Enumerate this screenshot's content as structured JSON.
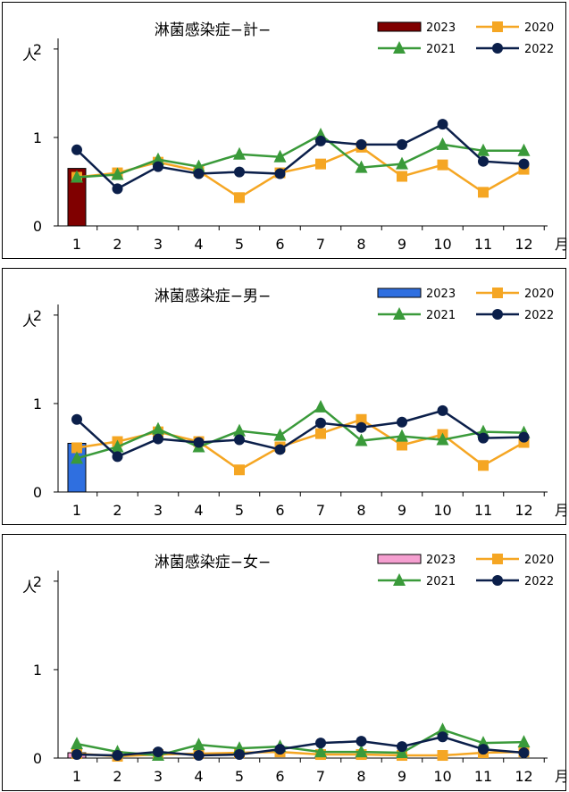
{
  "chart_data": [
    {
      "type": "bar+line",
      "title": "淋菌感染症−計−",
      "ylabel": "人",
      "xlabel": "月",
      "ylim": [
        0,
        2
      ],
      "yticks": [
        "0",
        "1",
        "2"
      ],
      "categories": [
        "1",
        "2",
        "3",
        "4",
        "5",
        "6",
        "7",
        "8",
        "9",
        "10",
        "11",
        "12"
      ],
      "bar": {
        "name": "2023",
        "color": "#800000",
        "values": [
          0.65
        ]
      },
      "series": [
        {
          "name": "2020",
          "color": "#f5a623",
          "marker": "square",
          "values": [
            0.55,
            0.6,
            0.72,
            0.62,
            0.32,
            0.6,
            0.7,
            0.89,
            0.56,
            0.69,
            0.38,
            0.64
          ]
        },
        {
          "name": "2021",
          "color": "#3a9a3a",
          "marker": "triangle",
          "values": [
            0.55,
            0.58,
            0.75,
            0.67,
            0.81,
            0.78,
            1.03,
            0.66,
            0.7,
            0.92,
            0.85,
            0.85
          ]
        },
        {
          "name": "2022",
          "color": "#0b1f4a",
          "marker": "circle",
          "values": [
            0.86,
            0.42,
            0.67,
            0.59,
            0.61,
            0.59,
            0.96,
            0.92,
            0.92,
            1.15,
            0.73,
            0.7
          ]
        }
      ],
      "legend_position": "top-right"
    },
    {
      "type": "bar+line",
      "title": "淋菌感染症−男−",
      "ylabel": "人",
      "xlabel": "月",
      "ylim": [
        0,
        2
      ],
      "yticks": [
        "0",
        "1",
        "2"
      ],
      "categories": [
        "1",
        "2",
        "3",
        "4",
        "5",
        "6",
        "7",
        "8",
        "9",
        "10",
        "11",
        "12"
      ],
      "bar": {
        "name": "2023",
        "color": "#2f6fe0",
        "values": [
          0.55
        ]
      },
      "series": [
        {
          "name": "2020",
          "color": "#f5a623",
          "marker": "square",
          "values": [
            0.5,
            0.57,
            0.68,
            0.57,
            0.25,
            0.51,
            0.66,
            0.82,
            0.53,
            0.65,
            0.3,
            0.56
          ]
        },
        {
          "name": "2021",
          "color": "#3a9a3a",
          "marker": "triangle",
          "values": [
            0.38,
            0.51,
            0.71,
            0.51,
            0.69,
            0.64,
            0.96,
            0.58,
            0.63,
            0.59,
            0.68,
            0.67
          ]
        },
        {
          "name": "2022",
          "color": "#0b1f4a",
          "marker": "circle",
          "values": [
            0.82,
            0.4,
            0.6,
            0.56,
            0.59,
            0.48,
            0.78,
            0.73,
            0.79,
            0.92,
            0.61,
            0.62
          ]
        }
      ],
      "legend_position": "top-right"
    },
    {
      "type": "bar+line",
      "title": "淋菌感染症−女−",
      "ylabel": "人",
      "xlabel": "月",
      "ylim": [
        0,
        2
      ],
      "yticks": [
        "0",
        "1",
        "2"
      ],
      "categories": [
        "1",
        "2",
        "3",
        "4",
        "5",
        "6",
        "7",
        "8",
        "9",
        "10",
        "11",
        "12"
      ],
      "bar": {
        "name": "2023",
        "color": "#f59fd0",
        "values": [
          0.06
        ]
      },
      "series": [
        {
          "name": "2020",
          "color": "#f5a623",
          "marker": "square",
          "values": [
            0.05,
            0.02,
            0.04,
            0.05,
            0.06,
            0.07,
            0.04,
            0.04,
            0.03,
            0.03,
            0.06,
            0.07
          ]
        },
        {
          "name": "2021",
          "color": "#3a9a3a",
          "marker": "triangle",
          "values": [
            0.16,
            0.07,
            0.03,
            0.15,
            0.11,
            0.13,
            0.07,
            0.07,
            0.06,
            0.32,
            0.17,
            0.18
          ]
        },
        {
          "name": "2022",
          "color": "#0b1f4a",
          "marker": "circle",
          "values": [
            0.04,
            0.03,
            0.07,
            0.03,
            0.04,
            0.1,
            0.17,
            0.19,
            0.13,
            0.24,
            0.1,
            0.06
          ]
        }
      ],
      "legend_position": "top-right"
    }
  ]
}
